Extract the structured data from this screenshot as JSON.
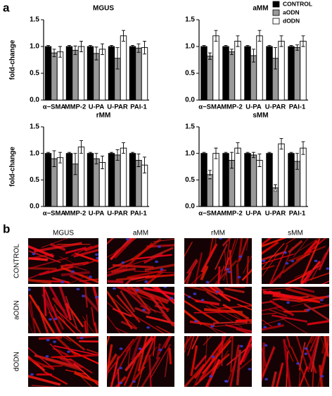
{
  "panel_label": "a",
  "legend": [
    {
      "name": "CONTROL",
      "color": "#000000"
    },
    {
      "name": "aODN",
      "color": "#999999"
    },
    {
      "name": "dODN",
      "color": "#ffffff"
    }
  ],
  "chart_data": [
    {
      "type": "bar",
      "title": "MGUS",
      "ylabel": "fold-change",
      "categories": [
        "α−SMA",
        "MMP-2",
        "U-PA",
        "U-PAR",
        "PAI-1"
      ],
      "ylim": [
        0,
        1.5
      ],
      "yticks": [
        {
          "value": 0,
          "label": "0.0"
        },
        {
          "value": 0.5,
          "label": "0.5"
        },
        {
          "value": 1,
          "label": "1.0"
        },
        {
          "value": 1.5,
          "label": "1.5"
        }
      ],
      "series": [
        {
          "values": [
            1,
            1,
            1,
            1,
            1
          ],
          "errors": [
            0.02,
            0.02,
            0.02,
            0.02,
            0.02
          ]
        },
        {
          "values": [
            0.88,
            0.93,
            0.87,
            0.78,
            0.97
          ],
          "errors": [
            0.07,
            0.08,
            0.12,
            0.2,
            0.08
          ]
        },
        {
          "values": [
            0.9,
            1.0,
            0.95,
            1.2,
            0.98
          ],
          "errors": [
            0.1,
            0.1,
            0.1,
            0.1,
            0.12
          ]
        }
      ]
    },
    {
      "type": "bar",
      "title": "aMM",
      "categories": [
        "α−SMA",
        "MMP-2",
        "U-PA",
        "U-PAR",
        "PAI-1"
      ],
      "ylim": [
        0,
        1.5
      ],
      "yticks": [
        {
          "value": 0,
          "label": "0.0"
        },
        {
          "value": 0.5,
          "label": "0.5"
        },
        {
          "value": 1,
          "label": "1.0"
        },
        {
          "value": 1.5,
          "label": "1.5"
        }
      ],
      "series": [
        {
          "values": [
            1,
            1,
            1,
            1,
            1
          ],
          "errors": [
            0.02,
            0.02,
            0.02,
            0.02,
            0.02
          ]
        },
        {
          "values": [
            0.82,
            0.9,
            0.83,
            0.78,
            0.98
          ],
          "errors": [
            0.06,
            0.05,
            0.12,
            0.2,
            0.05
          ]
        },
        {
          "values": [
            1.2,
            1.1,
            1.2,
            1.1,
            1.1
          ],
          "errors": [
            0.1,
            0.1,
            0.1,
            0.1,
            0.1
          ]
        }
      ]
    },
    {
      "type": "bar",
      "title": "rMM",
      "ylabel": "fold-change",
      "categories": [
        "α−SMA",
        "MMP-2",
        "U-PA",
        "U-PAR",
        "PAI-1"
      ],
      "ylim": [
        0,
        1.5
      ],
      "yticks": [
        {
          "value": 0,
          "label": "0.0"
        },
        {
          "value": 0.5,
          "label": "0.5"
        },
        {
          "value": 1,
          "label": "1.0"
        },
        {
          "value": 1.5,
          "label": "1.5"
        }
      ],
      "series": [
        {
          "values": [
            1,
            1,
            1,
            1,
            1
          ],
          "errors": [
            0.02,
            0.02,
            0.02,
            0.02,
            0.02
          ]
        },
        {
          "values": [
            0.9,
            0.8,
            0.9,
            0.97,
            0.87
          ],
          "errors": [
            0.15,
            0.2,
            0.1,
            0.1,
            0.12
          ]
        },
        {
          "values": [
            0.92,
            1.12,
            0.83,
            1.1,
            0.78
          ],
          "errors": [
            0.1,
            0.12,
            0.12,
            0.1,
            0.15
          ]
        }
      ]
    },
    {
      "type": "bar",
      "title": "sMM",
      "categories": [
        "α−SMA",
        "MMP-2",
        "U-PA",
        "U-PAR",
        "PAI-1"
      ],
      "ylim": [
        0,
        1.5
      ],
      "yticks": [
        {
          "value": 0,
          "label": "0.0"
        },
        {
          "value": 0.5,
          "label": "0.5"
        },
        {
          "value": 1,
          "label": "1.0"
        },
        {
          "value": 1.5,
          "label": "1.5"
        }
      ],
      "series": [
        {
          "values": [
            1,
            1,
            1,
            1,
            1
          ],
          "errors": [
            0.02,
            0.02,
            0.02,
            0.02,
            0.02
          ]
        },
        {
          "values": [
            0.6,
            0.87,
            0.97,
            0.35,
            0.85
          ],
          "errors": [
            0.08,
            0.15,
            0.05,
            0.06,
            0.15
          ],
          "marks": [
            "*",
            null,
            null,
            "*",
            null
          ]
        },
        {
          "values": [
            1.0,
            1.1,
            0.87,
            1.18,
            1.1
          ],
          "errors": [
            0.1,
            0.1,
            0.12,
            0.1,
            0.12
          ]
        }
      ]
    }
  ],
  "micrographs": {
    "label": "b",
    "columns": [
      "MGUS",
      "aMM",
      "rMM",
      "sMM"
    ],
    "rows": [
      "CONTROL",
      "aODN",
      "dODN"
    ]
  }
}
